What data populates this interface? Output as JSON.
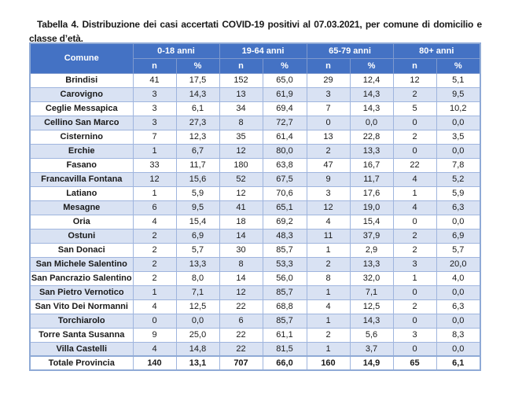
{
  "title": {
    "text": "Tabella 4. Distribuzione dei casi accertati COVID-19 positivi al 07.03.2021, per comune di domicilio e classe d’età."
  },
  "colors": {
    "header_bg": "#4472C4",
    "header_text": "#FFFFFF",
    "stripe_bg": "#D9E2F3",
    "cell_border": "#9FB5DE",
    "header_border": "#7E99CE",
    "outer_border": "#8FAAD6"
  },
  "chart_data": {
    "type": "table",
    "title": "Tabella 4. Distribuzione dei casi accertati COVID-19 positivi al 07.03.2021, per comune di domicilio e classe d’età.",
    "corner_header": "Comune",
    "age_groups": [
      "0-18 anni",
      "19-64 anni",
      "65-79 anni",
      "80+ anni"
    ],
    "sub_headers": [
      "n",
      "%"
    ],
    "rows": [
      {
        "comune": "Brindisi",
        "values": [
          "41",
          "17,5",
          "152",
          "65,0",
          "29",
          "12,4",
          "12",
          "5,1"
        ]
      },
      {
        "comune": "Carovigno",
        "values": [
          "3",
          "14,3",
          "13",
          "61,9",
          "3",
          "14,3",
          "2",
          "9,5"
        ]
      },
      {
        "comune": "Ceglie Messapica",
        "values": [
          "3",
          "6,1",
          "34",
          "69,4",
          "7",
          "14,3",
          "5",
          "10,2"
        ]
      },
      {
        "comune": "Cellino San Marco",
        "values": [
          "3",
          "27,3",
          "8",
          "72,7",
          "0",
          "0,0",
          "0",
          "0,0"
        ]
      },
      {
        "comune": "Cisternino",
        "values": [
          "7",
          "12,3",
          "35",
          "61,4",
          "13",
          "22,8",
          "2",
          "3,5"
        ]
      },
      {
        "comune": "Erchie",
        "values": [
          "1",
          "6,7",
          "12",
          "80,0",
          "2",
          "13,3",
          "0",
          "0,0"
        ]
      },
      {
        "comune": "Fasano",
        "values": [
          "33",
          "11,7",
          "180",
          "63,8",
          "47",
          "16,7",
          "22",
          "7,8"
        ]
      },
      {
        "comune": "Francavilla Fontana",
        "values": [
          "12",
          "15,6",
          "52",
          "67,5",
          "9",
          "11,7",
          "4",
          "5,2"
        ]
      },
      {
        "comune": "Latiano",
        "values": [
          "1",
          "5,9",
          "12",
          "70,6",
          "3",
          "17,6",
          "1",
          "5,9"
        ]
      },
      {
        "comune": "Mesagne",
        "values": [
          "6",
          "9,5",
          "41",
          "65,1",
          "12",
          "19,0",
          "4",
          "6,3"
        ]
      },
      {
        "comune": "Oria",
        "values": [
          "4",
          "15,4",
          "18",
          "69,2",
          "4",
          "15,4",
          "0",
          "0,0"
        ]
      },
      {
        "comune": "Ostuni",
        "values": [
          "2",
          "6,9",
          "14",
          "48,3",
          "11",
          "37,9",
          "2",
          "6,9"
        ]
      },
      {
        "comune": "San Donaci",
        "values": [
          "2",
          "5,7",
          "30",
          "85,7",
          "1",
          "2,9",
          "2",
          "5,7"
        ]
      },
      {
        "comune": "San Michele Salentino",
        "values": [
          "2",
          "13,3",
          "8",
          "53,3",
          "2",
          "13,3",
          "3",
          "20,0"
        ]
      },
      {
        "comune": "San Pancrazio Salentino",
        "values": [
          "2",
          "8,0",
          "14",
          "56,0",
          "8",
          "32,0",
          "1",
          "4,0"
        ]
      },
      {
        "comune": "San Pietro Vernotico",
        "values": [
          "1",
          "7,1",
          "12",
          "85,7",
          "1",
          "7,1",
          "0",
          "0,0"
        ]
      },
      {
        "comune": "San Vito Dei Normanni",
        "values": [
          "4",
          "12,5",
          "22",
          "68,8",
          "4",
          "12,5",
          "2",
          "6,3"
        ]
      },
      {
        "comune": "Torchiarolo",
        "values": [
          "0",
          "0,0",
          "6",
          "85,7",
          "1",
          "14,3",
          "0",
          "0,0"
        ]
      },
      {
        "comune": "Torre Santa Susanna",
        "values": [
          "9",
          "25,0",
          "22",
          "61,1",
          "2",
          "5,6",
          "3",
          "8,3"
        ]
      },
      {
        "comune": "Villa Castelli",
        "values": [
          "4",
          "14,8",
          "22",
          "81,5",
          "1",
          "3,7",
          "0",
          "0,0"
        ]
      }
    ],
    "total_row": {
      "comune": "Totale Provincia",
      "values": [
        "140",
        "13,1",
        "707",
        "66,0",
        "160",
        "14,9",
        "65",
        "6,1"
      ]
    }
  }
}
